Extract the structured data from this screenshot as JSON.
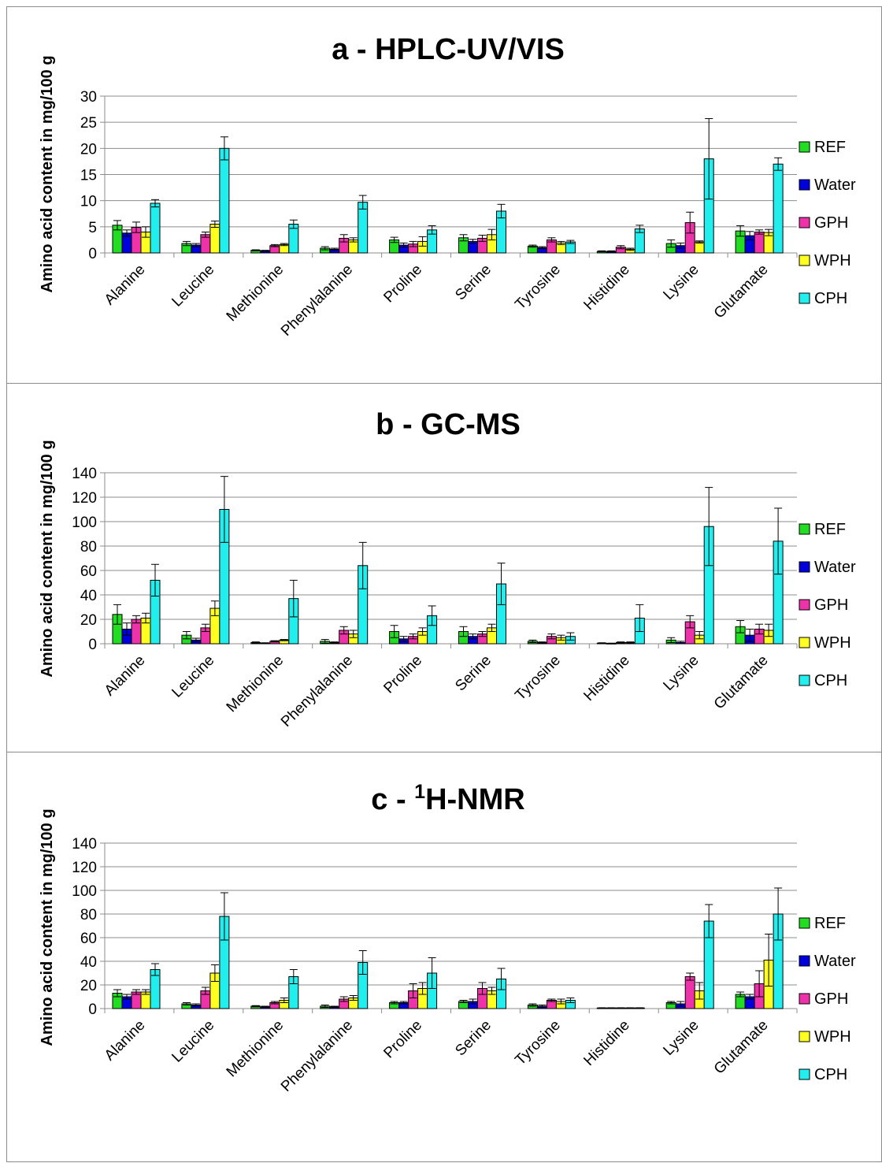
{
  "chart_data": [
    {
      "type": "bar",
      "title_prefix": "a - ",
      "title_sup": "",
      "title_rest": "HPLC-UV/VIS",
      "ylabel": "Amino acid content in mg/100 g",
      "ylim": [
        0,
        30
      ],
      "yticks": [
        "0",
        "5",
        "10",
        "15",
        "20",
        "25",
        "30"
      ],
      "grid": true,
      "legend_position": "right",
      "categories": [
        "Alanine",
        "Leucine",
        "Methionine",
        "Phenylalanine",
        "Proline",
        "Serine",
        "Tyrosine",
        "Histidine",
        "Lysine",
        "Glutamate"
      ],
      "series": [
        {
          "name": "REF",
          "color": "#22dd22",
          "values": [
            5.3,
            1.8,
            0.5,
            0.9,
            2.5,
            2.9,
            1.3,
            0.3,
            1.8,
            4.2
          ],
          "errors": [
            0.9,
            0.4,
            0.1,
            0.3,
            0.5,
            0.6,
            0.2,
            0.1,
            0.7,
            1.0
          ]
        },
        {
          "name": "Water",
          "color": "#0000dd",
          "values": [
            3.8,
            1.5,
            0.4,
            0.7,
            1.5,
            2.2,
            1.0,
            0.3,
            1.4,
            3.3
          ],
          "errors": [
            0.6,
            0.3,
            0.1,
            0.2,
            0.4,
            0.4,
            0.2,
            0.1,
            0.5,
            0.8
          ]
        },
        {
          "name": "GPH",
          "color": "#ee33aa",
          "values": [
            4.9,
            3.5,
            1.4,
            2.8,
            1.7,
            2.8,
            2.5,
            1.1,
            5.8,
            4.0
          ],
          "errors": [
            1.0,
            0.5,
            0.2,
            0.7,
            0.5,
            0.6,
            0.4,
            0.3,
            2.0,
            0.4
          ]
        },
        {
          "name": "WPH",
          "color": "#ffff22",
          "values": [
            4.0,
            5.5,
            1.6,
            2.5,
            2.2,
            3.5,
            1.9,
            0.7,
            2.1,
            3.9
          ],
          "errors": [
            1.0,
            0.6,
            0.2,
            0.4,
            0.9,
            1.0,
            0.3,
            0.2,
            0.2,
            0.6
          ]
        },
        {
          "name": "CPH",
          "color": "#22eeee",
          "values": [
            9.5,
            20.0,
            5.5,
            9.7,
            4.4,
            8.0,
            2.1,
            4.6,
            18.0,
            17.0
          ],
          "errors": [
            0.7,
            2.2,
            0.8,
            1.3,
            0.8,
            1.3,
            0.3,
            0.7,
            7.7,
            1.2
          ]
        }
      ]
    },
    {
      "type": "bar",
      "title_prefix": "b - ",
      "title_sup": "",
      "title_rest": "GC-MS",
      "ylabel": "Amino acid content in mg/100 g",
      "ylim": [
        0,
        140
      ],
      "yticks": [
        "0",
        "20",
        "40",
        "60",
        "80",
        "100",
        "120",
        "140"
      ],
      "grid": true,
      "legend_position": "right",
      "categories": [
        "Alanine",
        "Leucine",
        "Methionine",
        "Phenylalanine",
        "Proline",
        "Serine",
        "Tyrosine",
        "Histidine",
        "Lysine",
        "Glutamate"
      ],
      "series": [
        {
          "name": "REF",
          "color": "#22dd22",
          "values": [
            24,
            7,
            1,
            2,
            10,
            10,
            2,
            0.5,
            3,
            14
          ],
          "errors": [
            8,
            3,
            0.5,
            1.5,
            5,
            4,
            1,
            0.3,
            2,
            5
          ]
        },
        {
          "name": "Water",
          "color": "#0000dd",
          "values": [
            12,
            3,
            0.5,
            1,
            4,
            6,
            1,
            0.3,
            1,
            7
          ],
          "errors": [
            5,
            1.5,
            0.3,
            0.5,
            2,
            2,
            0.5,
            0.2,
            1,
            5
          ]
        },
        {
          "name": "GPH",
          "color": "#ee33aa",
          "values": [
            20,
            13,
            2,
            11,
            6,
            8,
            6,
            1,
            18,
            12
          ],
          "errors": [
            3,
            3,
            0.5,
            3,
            2,
            2,
            2,
            0.5,
            5,
            4
          ]
        },
        {
          "name": "WPH",
          "color": "#ffff22",
          "values": [
            21,
            29,
            3,
            8,
            10,
            13,
            5,
            1,
            7,
            11
          ],
          "errors": [
            4,
            6,
            0.5,
            3,
            3,
            3,
            2,
            0.5,
            3,
            5
          ]
        },
        {
          "name": "CPH",
          "color": "#22eeee",
          "values": [
            52,
            110,
            37,
            64,
            23,
            49,
            6,
            21,
            96,
            84
          ],
          "errors": [
            13,
            27,
            15,
            19,
            8,
            17,
            3,
            11,
            32,
            27
          ]
        }
      ]
    },
    {
      "type": "bar",
      "title_prefix": "c - ",
      "title_sup": "1",
      "title_rest": "H-NMR",
      "ylabel": "Amino acid content in mg/100 g",
      "ylim": [
        0,
        140
      ],
      "yticks": [
        "0",
        "20",
        "40",
        "60",
        "80",
        "100",
        "120",
        "140"
      ],
      "grid": true,
      "legend_position": "right",
      "categories": [
        "Alanine",
        "Leucine",
        "Methionine",
        "Phenylalanine",
        "Proline",
        "Serine",
        "Tyrosine",
        "Histidine",
        "Lysine",
        "Glutamate"
      ],
      "series": [
        {
          "name": "REF",
          "color": "#22dd22",
          "values": [
            13,
            4,
            2,
            2,
            5,
            6,
            3,
            0.5,
            5,
            12
          ],
          "errors": [
            3,
            1,
            0.5,
            1,
            1,
            1,
            1,
            0.2,
            1,
            2
          ]
        },
        {
          "name": "Water",
          "color": "#0000dd",
          "values": [
            10,
            3,
            1.5,
            1.5,
            5,
            6,
            2,
            0.5,
            4,
            10
          ],
          "errors": [
            2,
            1,
            0.5,
            0.5,
            1,
            2,
            1,
            0.2,
            2,
            2
          ]
        },
        {
          "name": "GPH",
          "color": "#ee33aa",
          "values": [
            14,
            15,
            5,
            8,
            15,
            17,
            7,
            0.5,
            27,
            21
          ],
          "errors": [
            2,
            3,
            1,
            2,
            6,
            5,
            1,
            0.2,
            3,
            11
          ]
        },
        {
          "name": "WPH",
          "color": "#ffff22",
          "values": [
            14,
            30,
            7,
            9,
            17,
            15,
            6,
            0.5,
            15,
            41
          ],
          "errors": [
            2,
            7,
            2,
            2,
            5,
            3,
            2,
            0.2,
            7,
            22
          ]
        },
        {
          "name": "CPH",
          "color": "#22eeee",
          "values": [
            33,
            78,
            27,
            39,
            30,
            25,
            7,
            0.5,
            74,
            80
          ],
          "errors": [
            5,
            20,
            6,
            10,
            13,
            9,
            2,
            0.2,
            14,
            22
          ]
        }
      ]
    }
  ]
}
